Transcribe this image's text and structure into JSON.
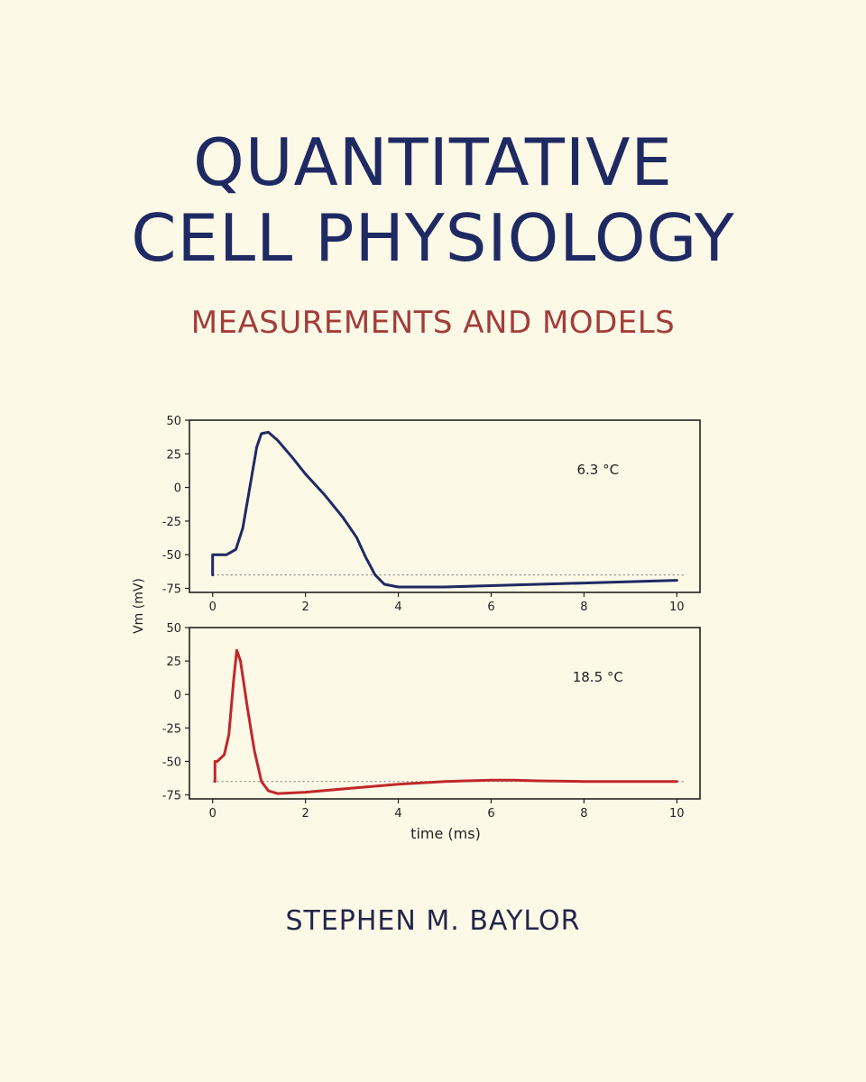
{
  "cover": {
    "title_line1": "QUANTITATIVE",
    "title_line2": "CELL PHYSIOLOGY",
    "subtitle": "MEASUREMENTS AND MODELS",
    "author": "STEPHEN M. BAYLOR"
  },
  "colors": {
    "background": "#fdf9e7",
    "title": "#1f2a63",
    "subtitle": "#a23d3a",
    "trace_top": "#1f2a63",
    "trace_bottom": "#c0282a",
    "axes": "#222222",
    "baseline": "#8a8a8a"
  },
  "chart_data": {
    "type": "line",
    "ylabel": "Vm (mV)",
    "xlabel": "time (ms)",
    "shared_y_label": true,
    "panels": [
      {
        "annotation": "6.3 °C",
        "xlim": [
          -0.5,
          10.5
        ],
        "ylim": [
          -78,
          50
        ],
        "xticks": [
          0,
          2,
          4,
          6,
          8,
          10
        ],
        "yticks": [
          50,
          25,
          0,
          -25,
          -50,
          -75
        ],
        "ytick_labels": [
          "50",
          "25",
          "0",
          "-25",
          "-50",
          "-75"
        ],
        "baseline": -65,
        "series": [
          {
            "x": [
              0.0,
              0.0,
              0.05,
              0.3,
              0.5,
              0.65,
              0.8,
              0.95,
              1.05,
              1.2,
              1.4,
              1.7,
              2.0,
              2.4,
              2.8,
              3.1,
              3.3,
              3.5,
              3.7,
              4.0,
              4.5,
              5.0,
              6.0,
              7.0,
              8.0,
              9.0,
              10.0
            ],
            "y": [
              -65,
              -50,
              -50,
              -50,
              -46,
              -30,
              0,
              30,
              40,
              41,
              35,
              23,
              10,
              -5,
              -22,
              -37,
              -52,
              -65,
              -72,
              -74,
              -74,
              -74,
              -73,
              -72,
              -71,
              -70,
              -69
            ]
          }
        ]
      },
      {
        "annotation": "18.5 °C",
        "xlim": [
          -0.5,
          10.5
        ],
        "ylim": [
          -78,
          50
        ],
        "xticks": [
          0,
          2,
          4,
          6,
          8,
          10
        ],
        "xtick_labels": [
          "0",
          "2",
          "4",
          "6",
          "8",
          "10"
        ],
        "yticks": [
          50,
          25,
          0,
          -25,
          -50,
          -75
        ],
        "ytick_labels": [
          "50",
          "25",
          "0",
          "-25",
          "-50",
          "-75"
        ],
        "baseline": -65,
        "series": [
          {
            "x": [
              0.05,
              0.05,
              0.1,
              0.25,
              0.35,
              0.45,
              0.52,
              0.6,
              0.75,
              0.9,
              1.05,
              1.2,
              1.4,
              2.0,
              3.0,
              4.0,
              5.0,
              6.0,
              6.5,
              7.0,
              8.0,
              9.0,
              10.0
            ],
            "y": [
              -65,
              -50,
              -50,
              -45,
              -30,
              10,
              33,
              25,
              -10,
              -42,
              -65,
              -72,
              -74,
              -73,
              -70,
              -67,
              -65,
              -64,
              -64,
              -64.5,
              -65,
              -65,
              -65
            ]
          }
        ]
      }
    ]
  }
}
